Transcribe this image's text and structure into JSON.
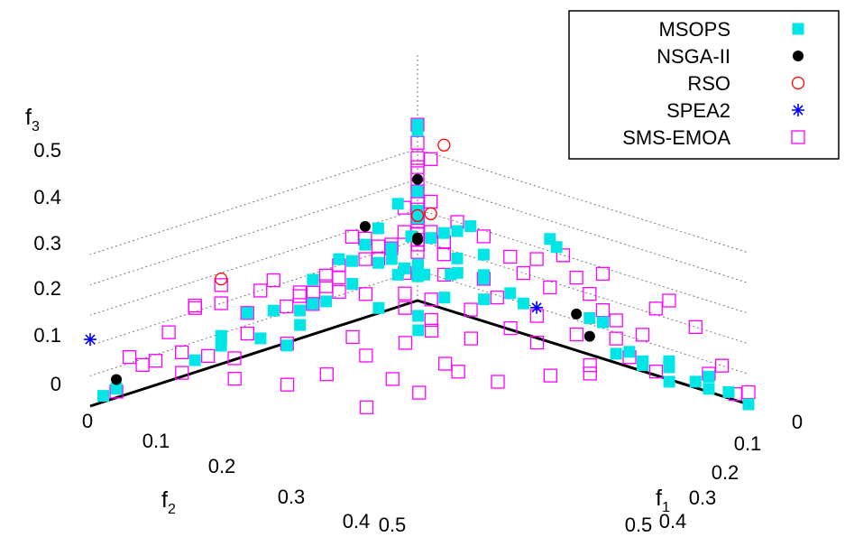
{
  "chart_data": {
    "type": "scatter",
    "projection": "3d",
    "axes": {
      "x": {
        "label": "f",
        "label_subscript": "1",
        "ticks": [
          "0",
          "0.1",
          "0.2",
          "0.3",
          "0.4",
          "0.5"
        ],
        "range": [
          0,
          0.5
        ]
      },
      "y": {
        "label": "f",
        "label_subscript": "2",
        "ticks": [
          "0",
          "0.1",
          "0.2",
          "0.3",
          "0.4",
          "0.5"
        ],
        "range": [
          0,
          0.5
        ]
      },
      "z": {
        "label": "f",
        "label_subscript": "3",
        "ticks": [
          "0",
          "0.1",
          "0.2",
          "0.3",
          "0.4",
          "0.5"
        ],
        "range": [
          0,
          0.5
        ]
      }
    },
    "grid": true,
    "legend": {
      "placement": "top-right"
    },
    "series": [
      {
        "name": "MSOPS",
        "marker": "filled-square",
        "color": "#00e5e5",
        "points": [
          [
            0.0,
            0.48,
            0.02
          ],
          [
            0.0,
            0.46,
            0.03
          ],
          [
            0.0,
            0.0,
            0.58
          ],
          [
            0.0,
            0.0,
            0.56
          ],
          [
            0.2,
            0.0,
            0.34
          ],
          [
            0.21,
            0.0,
            0.32
          ],
          [
            0.0,
            0.0,
            0.36
          ],
          [
            0.02,
            0.02,
            0.3
          ],
          [
            0.0,
            0.06,
            0.28
          ],
          [
            0.06,
            0.0,
            0.27
          ],
          [
            0.01,
            0.01,
            0.31
          ],
          [
            0.03,
            0.04,
            0.26
          ],
          [
            0.0,
            0.1,
            0.2
          ],
          [
            0.0,
            0.12,
            0.22
          ],
          [
            0.0,
            0.16,
            0.18
          ],
          [
            0.04,
            0.08,
            0.22
          ],
          [
            0.02,
            0.2,
            0.12
          ],
          [
            0.04,
            0.22,
            0.1
          ],
          [
            0.02,
            0.26,
            0.07
          ],
          [
            0.04,
            0.18,
            0.15
          ],
          [
            0.0,
            0.3,
            0.06
          ],
          [
            0.05,
            0.25,
            0.06
          ],
          [
            0.0,
            0.34,
            0.04
          ],
          [
            0.06,
            0.0,
            0.18
          ],
          [
            0.1,
            0.0,
            0.14
          ],
          [
            0.14,
            0.0,
            0.12
          ],
          [
            0.16,
            0.0,
            0.1
          ],
          [
            0.3,
            0.0,
            0.03
          ],
          [
            0.34,
            0.0,
            0.02
          ],
          [
            0.38,
            0.0,
            0.04
          ],
          [
            0.4,
            0.02,
            0.02
          ],
          [
            0.42,
            0.0,
            0.02
          ],
          [
            0.44,
            0.0,
            0.01
          ],
          [
            0.47,
            0.0,
            0.02
          ],
          [
            0.5,
            0.0,
            0.0
          ],
          [
            0.12,
            0.02,
            0.1
          ],
          [
            0.03,
            0.03,
            0.16
          ],
          [
            0.0,
            0.04,
            0.2
          ],
          [
            0.02,
            0.0,
            0.22
          ],
          [
            0.05,
            0.05,
            0.15
          ],
          [
            0.01,
            0.07,
            0.18
          ],
          [
            0.08,
            0.02,
            0.16
          ],
          [
            0.0,
            0.16,
            0.1
          ],
          [
            0.06,
            0.12,
            0.1
          ],
          [
            0.1,
            0.06,
            0.12
          ],
          [
            0.0,
            0.22,
            0.12
          ],
          [
            0.0,
            0.26,
            0.14
          ],
          [
            0.02,
            0.32,
            0.12
          ],
          [
            0.04,
            0.14,
            0.18
          ],
          [
            0.06,
            0.06,
            0.2
          ],
          [
            0.0,
            0.08,
            0.24
          ],
          [
            0.04,
            0.0,
            0.25
          ],
          [
            0.1,
            0.0,
            0.22
          ],
          [
            0.12,
            0.02,
            0.18
          ],
          [
            0.0,
            0.02,
            0.12
          ],
          [
            0.01,
            0.04,
            0.12
          ],
          [
            0.0,
            0.0,
            0.08
          ],
          [
            0.03,
            0.02,
            0.12
          ],
          [
            0.05,
            0.0,
            0.12
          ],
          [
            0.38,
            0.0,
            0.06
          ],
          [
            0.32,
            0.0,
            0.05
          ],
          [
            0.36,
            0.02,
            0.06
          ],
          [
            0.08,
            0.0,
            0.3
          ],
          [
            0.0,
            0.03,
            0.34
          ],
          [
            0.08,
            0.08,
            0.06
          ],
          [
            0.1,
            0.1,
            0.04
          ],
          [
            0.26,
            0.0,
            0.12
          ],
          [
            0.28,
            0.0,
            0.12
          ],
          [
            0.44,
            0.0,
            0.05
          ]
        ]
      },
      {
        "name": "NSGA-II",
        "marker": "filled-circle",
        "color": "#000000",
        "points": [
          [
            0.0,
            0.0,
            0.4
          ],
          [
            0.0,
            0.08,
            0.3
          ],
          [
            0.0,
            0.46,
            0.06
          ],
          [
            0.24,
            0.0,
            0.12
          ],
          [
            0.26,
            0.0,
            0.06
          ],
          [
            0.0,
            0.0,
            0.2
          ],
          [
            0.01,
            0.01,
            0.22
          ]
        ]
      },
      {
        "name": "RSO",
        "marker": "open-circle",
        "color": "#ff0000",
        "points": [
          [
            0.04,
            0.0,
            0.54
          ],
          [
            0.0,
            0.3,
            0.28
          ],
          [
            0.0,
            0.0,
            0.28
          ],
          [
            0.02,
            0.0,
            0.3
          ]
        ]
      },
      {
        "name": "SPEA2",
        "marker": "asterisk",
        "color": "#0000ff",
        "points": [
          [
            0.0,
            0.5,
            0.22
          ],
          [
            0.18,
            0.0,
            0.1
          ]
        ]
      },
      {
        "name": "SMS-EMOA",
        "marker": "open-square",
        "color": "#ff00ff",
        "points": [
          [
            0.0,
            0.0,
            0.58
          ],
          [
            0.0,
            0.0,
            0.47
          ],
          [
            0.0,
            0.0,
            0.42
          ],
          [
            0.0,
            0.0,
            0.38
          ],
          [
            0.0,
            0.0,
            0.32
          ],
          [
            0.0,
            0.0,
            0.28
          ],
          [
            0.0,
            0.0,
            0.2
          ],
          [
            0.0,
            0.0,
            0.16
          ],
          [
            0.0,
            0.0,
            0.22
          ],
          [
            0.0,
            0.0,
            0.44
          ],
          [
            0.0,
            0.0,
            0.52
          ],
          [
            0.02,
            0.0,
            0.48
          ],
          [
            0.0,
            0.46,
            0.02
          ],
          [
            0.0,
            0.42,
            0.08
          ],
          [
            0.0,
            0.4,
            0.08
          ],
          [
            0.0,
            0.44,
            0.12
          ],
          [
            0.0,
            0.38,
            0.16
          ],
          [
            0.0,
            0.36,
            0.08
          ],
          [
            0.0,
            0.32,
            0.04
          ],
          [
            0.0,
            0.3,
            0.2
          ],
          [
            0.0,
            0.26,
            0.14
          ],
          [
            0.0,
            0.24,
            0.2
          ],
          [
            0.0,
            0.22,
            0.22
          ],
          [
            0.02,
            0.2,
            0.18
          ],
          [
            0.0,
            0.2,
            0.12
          ],
          [
            0.0,
            0.18,
            0.14
          ],
          [
            0.0,
            0.16,
            0.1
          ],
          [
            0.0,
            0.14,
            0.18
          ],
          [
            0.0,
            0.12,
            0.2
          ],
          [
            0.02,
            0.1,
            0.22
          ],
          [
            0.0,
            0.08,
            0.26
          ],
          [
            0.02,
            0.06,
            0.24
          ],
          [
            0.0,
            0.04,
            0.2
          ],
          [
            0.04,
            0.06,
            0.16
          ],
          [
            0.06,
            0.08,
            0.12
          ],
          [
            0.08,
            0.1,
            0.1
          ],
          [
            0.12,
            0.14,
            0.04
          ],
          [
            0.16,
            0.2,
            -0.01
          ],
          [
            0.2,
            0.28,
            -0.02
          ],
          [
            0.22,
            0.22,
            0.0
          ],
          [
            0.2,
            0.16,
            0.04
          ],
          [
            0.14,
            0.12,
            0.08
          ],
          [
            0.06,
            0.14,
            0.16
          ],
          [
            0.04,
            0.18,
            0.2
          ],
          [
            0.06,
            0.22,
            0.22
          ],
          [
            0.0,
            0.3,
            0.26
          ],
          [
            0.0,
            0.34,
            0.22
          ],
          [
            0.02,
            0.36,
            0.24
          ],
          [
            0.0,
            0.1,
            0.28
          ],
          [
            0.04,
            0.04,
            0.24
          ],
          [
            0.06,
            0.0,
            0.3
          ],
          [
            0.1,
            0.0,
            0.28
          ],
          [
            0.14,
            0.0,
            0.24
          ],
          [
            0.16,
            0.0,
            0.2
          ],
          [
            0.2,
            0.0,
            0.18
          ],
          [
            0.24,
            0.0,
            0.24
          ],
          [
            0.26,
            0.0,
            0.2
          ],
          [
            0.28,
            0.0,
            0.16
          ],
          [
            0.3,
            0.0,
            0.14
          ],
          [
            0.34,
            0.0,
            0.12
          ],
          [
            0.36,
            0.0,
            0.22
          ],
          [
            0.38,
            0.0,
            0.26
          ],
          [
            0.42,
            0.0,
            0.2
          ],
          [
            0.44,
            0.0,
            0.06
          ],
          [
            0.46,
            0.0,
            0.1
          ],
          [
            0.5,
            0.0,
            0.04
          ],
          [
            0.48,
            0.0,
            0.02
          ],
          [
            0.38,
            0.02,
            0.04
          ],
          [
            0.3,
            0.04,
            0.02
          ],
          [
            0.28,
            0.08,
            0.0
          ],
          [
            0.24,
            0.12,
            -0.02
          ],
          [
            0.2,
            0.14,
            0.0
          ],
          [
            0.16,
            0.08,
            0.04
          ],
          [
            0.12,
            0.04,
            0.08
          ],
          [
            0.1,
            0.08,
            0.06
          ],
          [
            0.08,
            0.06,
            0.1
          ],
          [
            0.06,
            0.02,
            0.14
          ],
          [
            0.04,
            0.0,
            0.18
          ],
          [
            0.18,
            0.04,
            0.06
          ],
          [
            0.22,
            0.04,
            0.04
          ],
          [
            0.3,
            0.0,
            0.08
          ],
          [
            0.34,
            0.02,
            0.06
          ],
          [
            0.32,
            0.06,
            0.02
          ],
          [
            0.26,
            0.02,
            0.08
          ],
          [
            0.2,
            0.02,
            0.1
          ],
          [
            0.14,
            0.02,
            0.12
          ],
          [
            0.1,
            0.0,
            0.14
          ],
          [
            0.04,
            0.0,
            0.22
          ],
          [
            0.02,
            0.0,
            0.24
          ],
          [
            0.0,
            0.02,
            0.24
          ],
          [
            0.0,
            0.06,
            0.22
          ],
          [
            0.02,
            0.14,
            0.14
          ],
          [
            0.0,
            0.12,
            0.16
          ],
          [
            0.0,
            0.06,
            0.18
          ],
          [
            0.02,
            0.28,
            0.1
          ],
          [
            0.04,
            0.32,
            0.06
          ],
          [
            0.02,
            0.38,
            0.04
          ],
          [
            0.06,
            0.34,
            0.02
          ],
          [
            0.1,
            0.3,
            0.0
          ],
          [
            0.12,
            0.26,
            0.02
          ],
          [
            0.12,
            0.2,
            0.04
          ],
          [
            0.08,
            0.18,
            0.06
          ],
          [
            0.06,
            0.26,
            0.08
          ],
          [
            0.28,
            0.0,
            0.28
          ],
          [
            0.22,
            0.0,
            0.3
          ],
          [
            0.18,
            0.0,
            0.26
          ],
          [
            0.02,
            0.02,
            0.3
          ],
          [
            0.0,
            0.0,
            0.26
          ],
          [
            0.0,
            0.0,
            0.3
          ],
          [
            0.0,
            0.0,
            0.36
          ],
          [
            0.02,
            0.0,
            0.34
          ],
          [
            0.0,
            0.02,
            0.32
          ]
        ]
      }
    ]
  }
}
